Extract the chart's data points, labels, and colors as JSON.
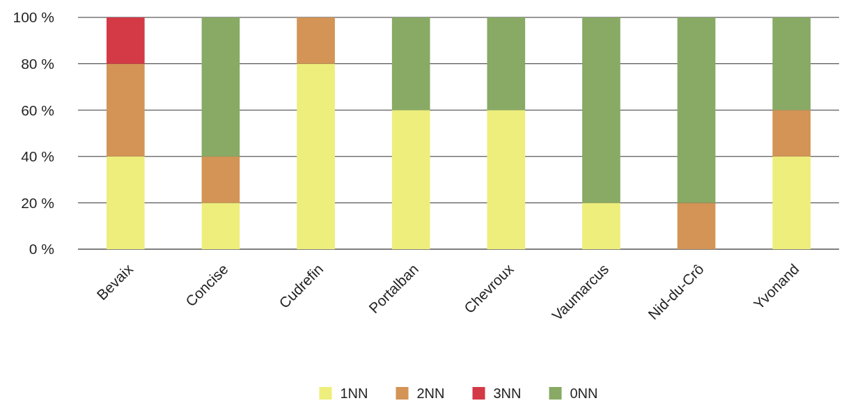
{
  "chart_data": {
    "type": "bar",
    "stacked": true,
    "categories": [
      "Bevaix",
      "Concise",
      "Cudrefin",
      "Portalban",
      "Chevroux",
      "Vaumarcus",
      "Nid-du-Crô",
      "Yvonand"
    ],
    "series": [
      {
        "name": "1NN",
        "color": "#eeee7c",
        "values": [
          40,
          20,
          80,
          60,
          60,
          20,
          0,
          40
        ]
      },
      {
        "name": "2NN",
        "color": "#d39455",
        "values": [
          40,
          20,
          20,
          0,
          0,
          0,
          20,
          20
        ]
      },
      {
        "name": "3NN",
        "color": "#d33a45",
        "values": [
          20,
          0,
          0,
          0,
          0,
          0,
          0,
          0
        ]
      },
      {
        "name": "0NN",
        "color": "#88aa64",
        "values": [
          0,
          60,
          0,
          40,
          40,
          80,
          80,
          40
        ]
      }
    ],
    "ylim": [
      0,
      100
    ],
    "yticks": [
      {
        "value": 0,
        "label": "0 %"
      },
      {
        "value": 20,
        "label": "20 %"
      },
      {
        "value": 40,
        "label": "40 %"
      },
      {
        "value": 60,
        "label": "60 %"
      },
      {
        "value": 80,
        "label": "80 %"
      },
      {
        "value": 100,
        "label": "100 %"
      }
    ],
    "grid": "y",
    "legend": "bottom"
  }
}
